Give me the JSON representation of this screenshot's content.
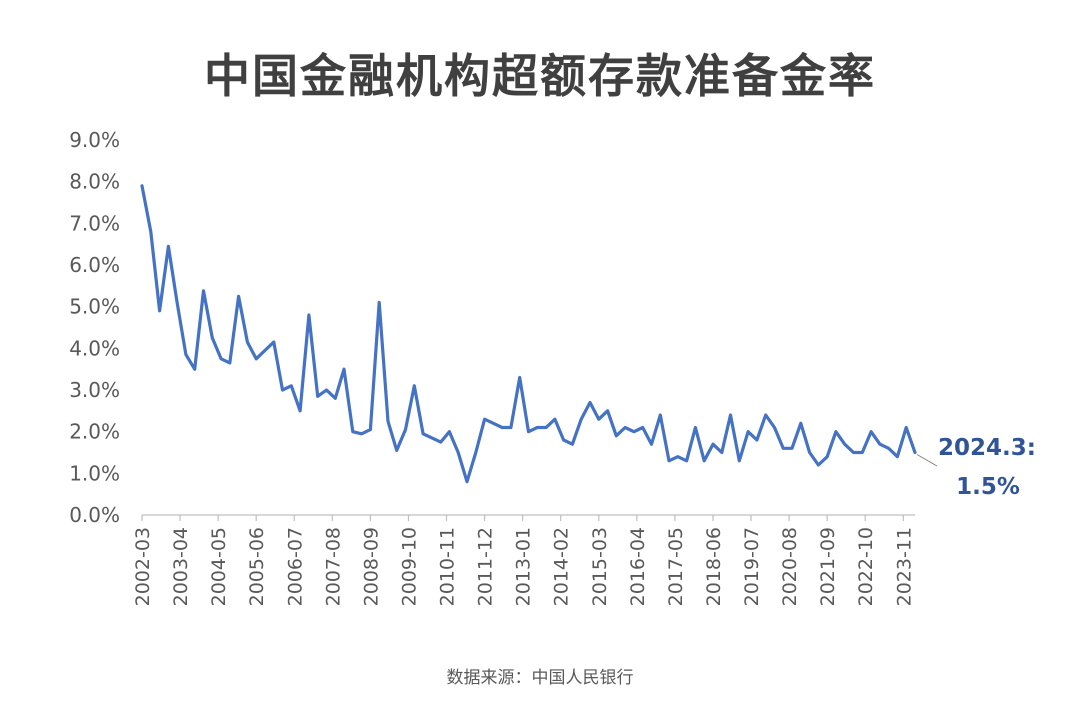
{
  "chart_data": {
    "type": "line",
    "title": "中国金融机构超额存款准备金率",
    "source": "数据来源：中国人民银行",
    "ylim": [
      0,
      9
    ],
    "y_ticks": [
      "0.0%",
      "1.0%",
      "2.0%",
      "3.0%",
      "4.0%",
      "5.0%",
      "6.0%",
      "7.0%",
      "8.0%",
      "9.0%"
    ],
    "x_ticks": [
      "2002-03",
      "2003-04",
      "2004-05",
      "2005-06",
      "2006-07",
      "2007-08",
      "2008-09",
      "2009-10",
      "2010-11",
      "2011-12",
      "2013-01",
      "2014-02",
      "2015-03",
      "2016-04",
      "2017-05",
      "2018-06",
      "2019-07",
      "2020-08",
      "2021-09",
      "2022-10",
      "2023-11"
    ],
    "grid": false,
    "legend": "none",
    "line_color": "#4472C4",
    "series": [
      {
        "x": [
          "2002-03",
          "2002-06",
          "2002-09",
          "2002-12",
          "2003-03",
          "2003-06",
          "2003-09",
          "2003-12",
          "2004-03",
          "2004-06",
          "2004-09",
          "2004-12",
          "2005-03",
          "2005-06",
          "2005-09",
          "2005-12",
          "2006-03",
          "2006-06",
          "2006-09",
          "2006-12",
          "2007-03",
          "2007-06",
          "2007-09",
          "2007-12",
          "2008-03",
          "2008-06",
          "2008-09",
          "2008-12",
          "2009-03",
          "2009-06",
          "2009-09",
          "2009-12",
          "2010-03",
          "2010-06",
          "2010-09",
          "2010-12",
          "2011-03",
          "2011-06",
          "2011-09",
          "2011-12",
          "2012-03",
          "2012-06",
          "2012-09",
          "2012-12",
          "2013-03",
          "2013-06",
          "2013-09",
          "2013-12",
          "2014-03",
          "2014-06",
          "2014-09",
          "2014-12",
          "2015-03",
          "2015-06",
          "2015-09",
          "2015-12",
          "2016-03",
          "2016-06",
          "2016-09",
          "2016-12",
          "2017-03",
          "2017-06",
          "2017-09",
          "2017-12",
          "2018-03",
          "2018-06",
          "2018-09",
          "2018-12",
          "2019-03",
          "2019-06",
          "2019-09",
          "2019-12",
          "2020-03",
          "2020-06",
          "2020-09",
          "2020-12",
          "2021-03",
          "2021-06",
          "2021-09",
          "2021-12",
          "2022-03",
          "2022-06",
          "2022-09",
          "2022-12",
          "2023-03",
          "2023-06",
          "2023-09",
          "2023-12",
          "2024-03"
        ],
        "values": [
          7.9,
          6.8,
          4.9,
          6.45,
          5.1,
          3.85,
          3.5,
          5.38,
          4.25,
          3.75,
          3.65,
          5.25,
          4.15,
          3.75,
          3.95,
          4.15,
          3.0,
          3.1,
          2.5,
          4.8,
          2.85,
          3.0,
          2.8,
          3.5,
          2.0,
          1.95,
          2.05,
          5.1,
          2.25,
          1.55,
          2.05,
          3.1,
          1.95,
          1.85,
          1.75,
          2.0,
          1.5,
          0.8,
          1.5,
          2.3,
          2.2,
          2.1,
          2.1,
          3.3,
          2.0,
          2.1,
          2.1,
          2.3,
          1.8,
          1.7,
          2.3,
          2.7,
          2.3,
          2.5,
          1.9,
          2.1,
          2.0,
          2.1,
          1.7,
          2.4,
          1.3,
          1.4,
          1.3,
          2.1,
          1.3,
          1.7,
          1.5,
          2.4,
          1.3,
          2.0,
          1.8,
          2.4,
          2.1,
          1.6,
          1.6,
          2.2,
          1.5,
          1.2,
          1.4,
          2.0,
          1.7,
          1.5,
          1.5,
          2.0,
          1.7,
          1.6,
          1.4,
          2.1,
          1.5
        ]
      }
    ],
    "annotation": {
      "label": "2024.3:",
      "value_label": "1.5%",
      "color": "#2F5597"
    }
  }
}
